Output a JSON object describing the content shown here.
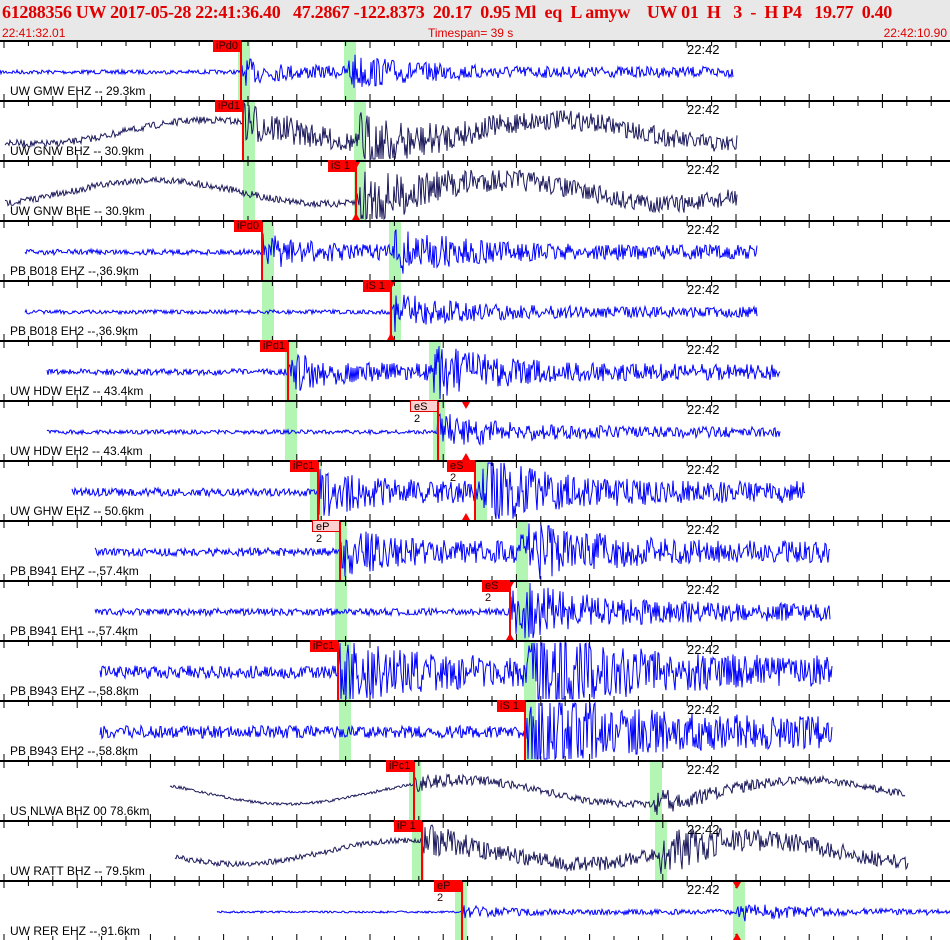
{
  "header": {
    "title": "61288356 UW 2017-05-28 22:41:36.40   47.2867 -122.8373  20.17  0.95 Ml  eq  L amyw    UW 01  H   3  -  H P4   19.77  0.40",
    "start_time": "22:41:32.01",
    "timespan": "Timespan=  39 s",
    "end_time": "22:42:10.90"
  },
  "colors": {
    "header_text": "#e00000",
    "trace_short_period": "#0000ff",
    "trace_broadband": "#1c1a5c",
    "pick": "#ff0000",
    "window": "#b3f5b3"
  },
  "channels": [
    {
      "label": "UW GMW EHZ -- 29.3km",
      "time": "22:42",
      "trace": "short-period",
      "picks": [
        {
          "label": "iPd0"
        }
      ]
    },
    {
      "label": "UW GNW BHZ -- 30.9km",
      "time": "22:42",
      "trace": "broadband",
      "picks": [
        {
          "label": "iPd1"
        }
      ]
    },
    {
      "label": "UW GNW BHE -- 30.9km",
      "time": "22:42",
      "trace": "broadband",
      "picks": [
        {
          "label": "iS 1"
        }
      ]
    },
    {
      "label": "PB B018 EHZ --,36.9km",
      "time": "22:42",
      "trace": "short-period",
      "picks": [
        {
          "label": "iPd0"
        }
      ]
    },
    {
      "label": "PB B018 EH2 --,36.9km",
      "time": "22:42",
      "trace": "short-period",
      "picks": [
        {
          "label": "iS 1"
        }
      ]
    },
    {
      "label": "UW HDW EHZ -- 43.4km",
      "time": "22:42",
      "trace": "short-period",
      "picks": [
        {
          "label": "iPd1"
        }
      ]
    },
    {
      "label": "UW HDW EH2 -- 43.4km",
      "time": "22:42",
      "trace": "short-period",
      "picks": [
        {
          "label": "eS 2"
        }
      ]
    },
    {
      "label": "UW GHW EHZ -- 50.6km",
      "time": "22:42",
      "trace": "short-period",
      "picks": [
        {
          "label": "iPc1"
        },
        {
          "label": "eS 2"
        }
      ]
    },
    {
      "label": "PB B941 EHZ --,57.4km",
      "time": "22:42",
      "trace": "short-period",
      "picks": [
        {
          "label": "eP 2"
        }
      ]
    },
    {
      "label": "PB B941 EH1 --,57.4km",
      "time": "22:42",
      "trace": "short-period",
      "picks": [
        {
          "label": "eS 2"
        }
      ]
    },
    {
      "label": "PB B943 EHZ --,58.8km",
      "time": "22:42",
      "trace": "short-period",
      "picks": [
        {
          "label": "iPc1"
        }
      ]
    },
    {
      "label": "PB B943 EH2 --,58.8km",
      "time": "22:42",
      "trace": "short-period",
      "picks": [
        {
          "label": "iS 1"
        }
      ]
    },
    {
      "label": "US NLWA BHZ 00 78.6km",
      "time": "22:42",
      "trace": "broadband",
      "picks": [
        {
          "label": "iPc1"
        }
      ]
    },
    {
      "label": "UW RATT BHZ -- 79.5km",
      "time": "22:42",
      "trace": "broadband",
      "picks": [
        {
          "label": "iP 1"
        }
      ]
    },
    {
      "label": "UW RER EHZ --,91.6km",
      "time": "22:42",
      "trace": "short-period",
      "picks": [
        {
          "label": "eP 2"
        }
      ]
    }
  ]
}
